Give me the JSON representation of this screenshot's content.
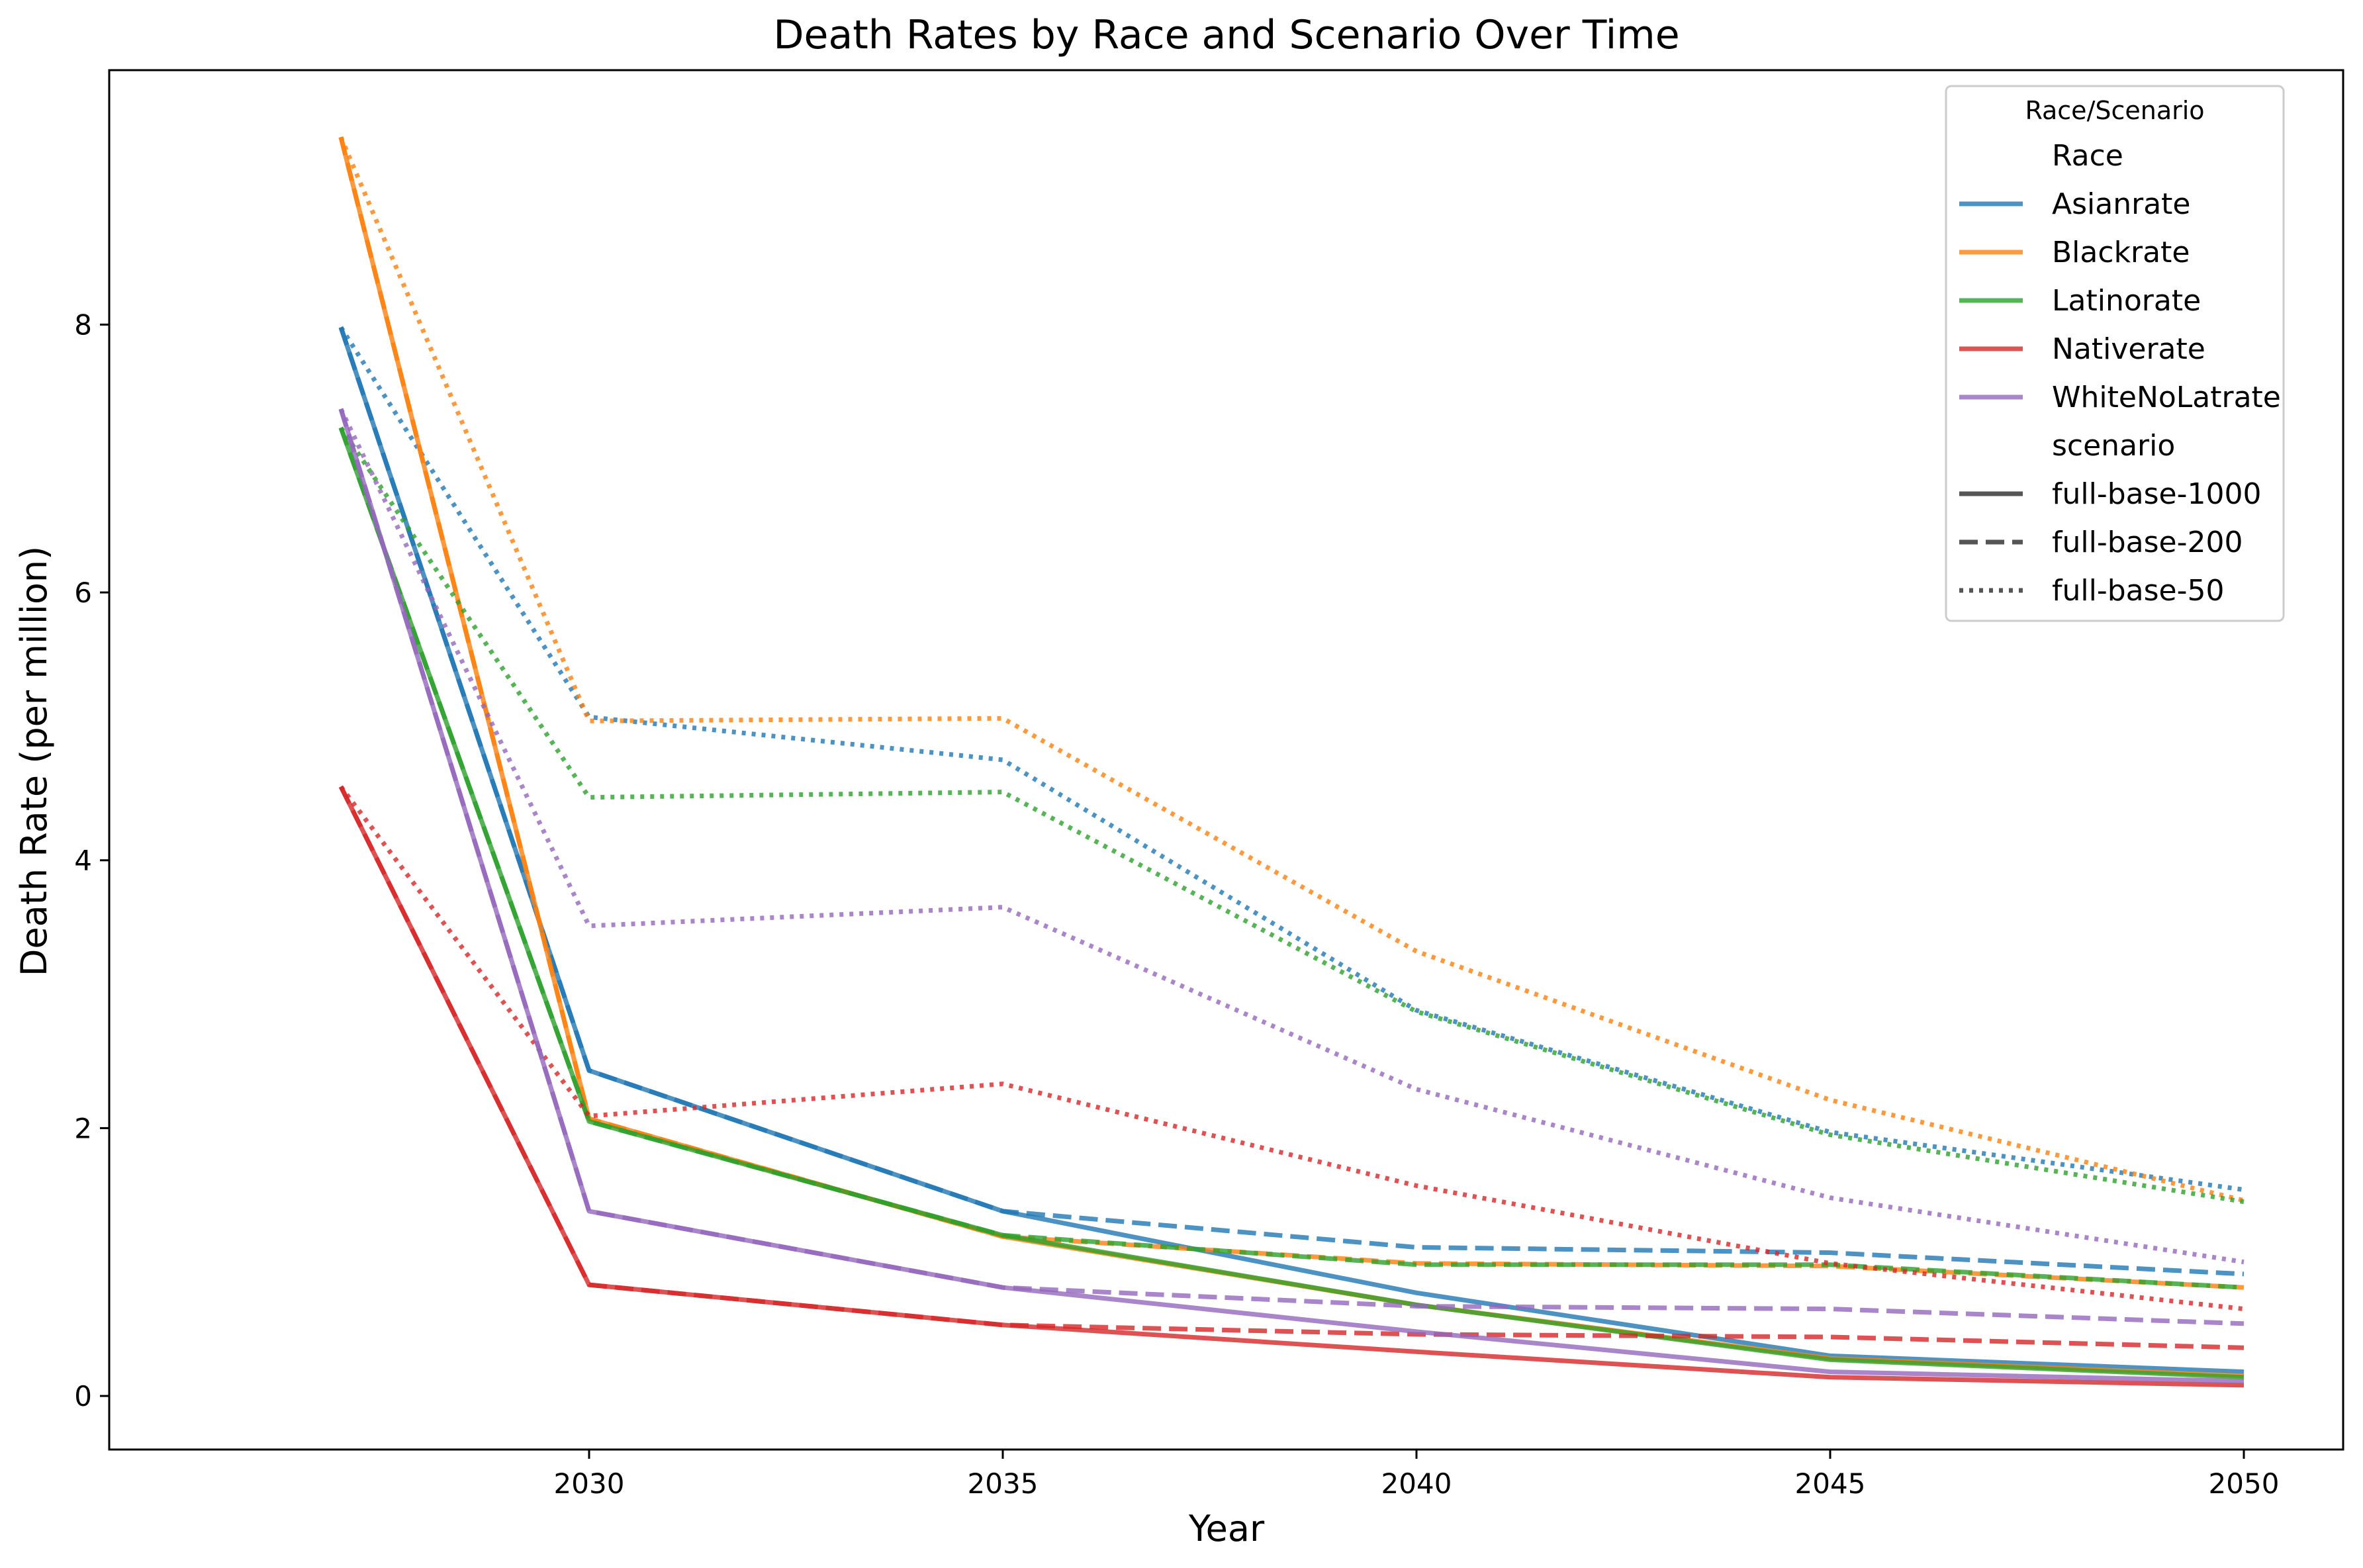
{
  "chart_data": {
    "type": "line",
    "title": "Death Rates by Race and Scenario Over Time",
    "xlabel": "Year",
    "ylabel": "Death Rate (per million)",
    "xlim": [
      2024.2,
      2051.2
    ],
    "ylim": [
      -0.4,
      9.9
    ],
    "x_ticks": [
      2030,
      2035,
      2040,
      2045,
      2050
    ],
    "y_ticks": [
      0,
      2,
      4,
      6,
      8
    ],
    "x": [
      2027,
      2030,
      2035,
      2040,
      2045,
      2050
    ],
    "grid": false,
    "legend": {
      "title": "Race/Scenario",
      "placement": "top-right",
      "race_header": "Race",
      "scenario_header": "scenario",
      "races": [
        {
          "name": "Asianrate",
          "color": "#1f77b4"
        },
        {
          "name": "Blackrate",
          "color": "#ff7f0e"
        },
        {
          "name": "Latinorate",
          "color": "#2ca02c"
        },
        {
          "name": "Nativerate",
          "color": "#d62728"
        },
        {
          "name": "WhiteNoLatrate",
          "color": "#9467bd"
        }
      ],
      "scenarios": [
        {
          "name": "full-base-1000",
          "dash": "solid"
        },
        {
          "name": "full-base-200",
          "dash": "dashed"
        },
        {
          "name": "full-base-50",
          "dash": "dotted"
        }
      ]
    },
    "series": [
      {
        "race": "Asianrate",
        "scenario": "full-base-1000",
        "values": [
          7.98,
          2.43,
          1.38,
          0.77,
          0.3,
          0.18
        ]
      },
      {
        "race": "Asianrate",
        "scenario": "full-base-200",
        "values": [
          7.98,
          2.43,
          1.38,
          1.11,
          1.07,
          0.91
        ]
      },
      {
        "race": "Asianrate",
        "scenario": "full-base-50",
        "values": [
          7.98,
          5.07,
          4.75,
          2.88,
          1.97,
          1.54
        ]
      },
      {
        "race": "Blackrate",
        "scenario": "full-base-1000",
        "values": [
          9.4,
          2.07,
          1.19,
          0.68,
          0.28,
          0.15
        ]
      },
      {
        "race": "Blackrate",
        "scenario": "full-base-200",
        "values": [
          9.4,
          2.07,
          1.19,
          0.99,
          0.97,
          0.81
        ]
      },
      {
        "race": "Blackrate",
        "scenario": "full-base-50",
        "values": [
          9.4,
          5.04,
          5.06,
          3.32,
          2.21,
          1.46
        ]
      },
      {
        "race": "Latinorate",
        "scenario": "full-base-1000",
        "values": [
          7.23,
          2.05,
          1.2,
          0.68,
          0.27,
          0.14
        ]
      },
      {
        "race": "Latinorate",
        "scenario": "full-base-200",
        "values": [
          7.23,
          2.05,
          1.2,
          0.98,
          0.98,
          0.81
        ]
      },
      {
        "race": "Latinorate",
        "scenario": "full-base-50",
        "values": [
          7.23,
          4.47,
          4.51,
          2.87,
          1.95,
          1.45
        ]
      },
      {
        "race": "Nativerate",
        "scenario": "full-base-1000",
        "values": [
          4.55,
          0.83,
          0.53,
          0.33,
          0.14,
          0.08
        ]
      },
      {
        "race": "Nativerate",
        "scenario": "full-base-200",
        "values": [
          4.55,
          0.83,
          0.53,
          0.46,
          0.44,
          0.36
        ]
      },
      {
        "race": "Nativerate",
        "scenario": "full-base-50",
        "values": [
          4.55,
          2.09,
          2.33,
          1.57,
          0.99,
          0.65
        ]
      },
      {
        "race": "WhiteNoLatrate",
        "scenario": "full-base-1000",
        "values": [
          7.37,
          1.38,
          0.81,
          0.48,
          0.18,
          0.11
        ]
      },
      {
        "race": "WhiteNoLatrate",
        "scenario": "full-base-200",
        "values": [
          7.37,
          1.38,
          0.81,
          0.67,
          0.65,
          0.54
        ]
      },
      {
        "race": "WhiteNoLatrate",
        "scenario": "full-base-50",
        "values": [
          7.37,
          3.51,
          3.65,
          2.29,
          1.48,
          1.0
        ]
      }
    ]
  }
}
